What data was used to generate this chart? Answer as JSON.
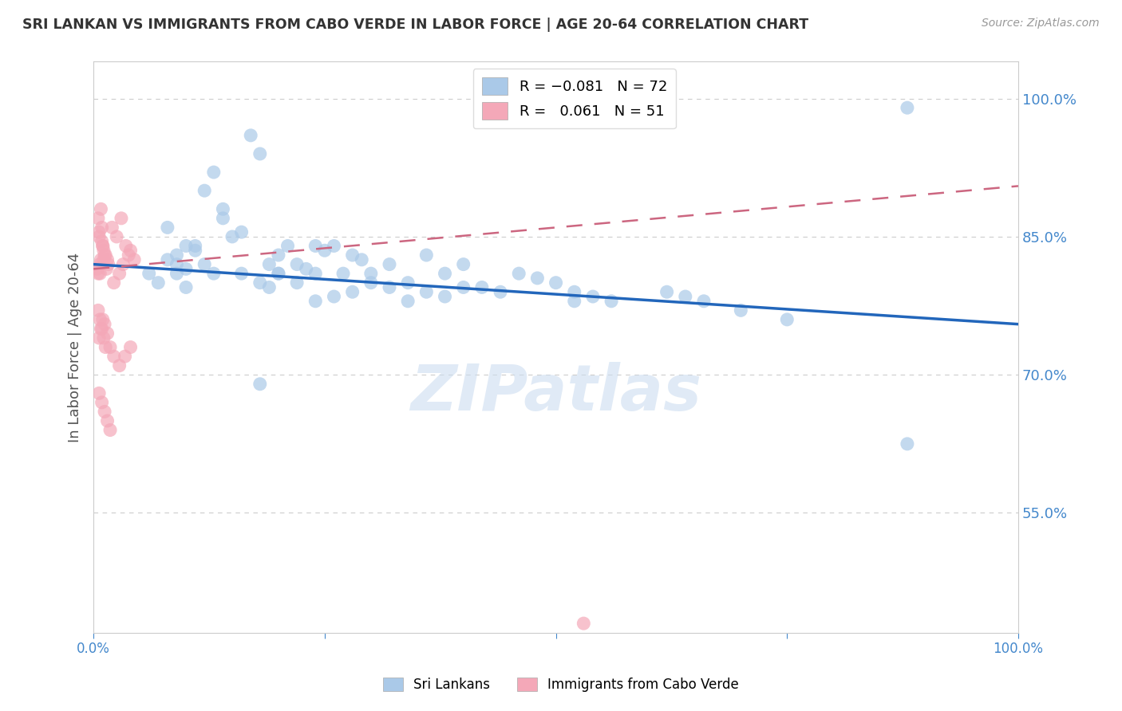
{
  "title": "SRI LANKAN VS IMMIGRANTS FROM CABO VERDE IN LABOR FORCE | AGE 20-64 CORRELATION CHART",
  "source": "Source: ZipAtlas.com",
  "ylabel": "In Labor Force | Age 20-64",
  "ytick_labels": [
    "100.0%",
    "85.0%",
    "70.0%",
    "55.0%"
  ],
  "ytick_values": [
    1.0,
    0.85,
    0.7,
    0.55
  ],
  "xlim": [
    0.0,
    1.0
  ],
  "ylim": [
    0.42,
    1.04
  ],
  "sri_lankans": {
    "color": "#aac9e8",
    "edge_color": "#7aaed4",
    "R": -0.081,
    "N": 72,
    "trend_x0": 0.0,
    "trend_y0": 0.82,
    "trend_x1": 1.0,
    "trend_y1": 0.755
  },
  "cabo_verde": {
    "color": "#f4a8b8",
    "edge_color": "#e07090",
    "R": 0.061,
    "N": 51,
    "trend_x0": 0.0,
    "trend_y0": 0.815,
    "trend_x1": 1.0,
    "trend_y1": 0.905
  },
  "watermark": "ZIPatlas",
  "watermark_color": "#ccddf0",
  "background_color": "#ffffff",
  "grid_color": "#cccccc",
  "title_color": "#333333",
  "axis_label_color": "#555555",
  "tick_label_color": "#4488cc",
  "right_tick_color": "#4488cc",
  "trend_blue_color": "#2266bb",
  "trend_pink_color": "#cc6680",
  "sri_x_data": [
    0.08,
    0.14,
    0.14,
    0.09,
    0.1,
    0.11,
    0.07,
    0.06,
    0.08,
    0.09,
    0.12,
    0.13,
    0.1,
    0.11,
    0.09,
    0.15,
    0.16,
    0.13,
    0.12,
    0.1,
    0.17,
    0.18,
    0.19,
    0.2,
    0.21,
    0.22,
    0.23,
    0.2,
    0.18,
    0.16,
    0.24,
    0.25,
    0.26,
    0.27,
    0.28,
    0.29,
    0.24,
    0.22,
    0.2,
    0.19,
    0.3,
    0.32,
    0.34,
    0.36,
    0.38,
    0.3,
    0.32,
    0.28,
    0.26,
    0.24,
    0.4,
    0.42,
    0.44,
    0.46,
    0.48,
    0.4,
    0.38,
    0.36,
    0.34,
    0.5,
    0.52,
    0.54,
    0.56,
    0.62,
    0.64,
    0.66,
    0.7,
    0.75,
    0.88,
    0.88,
    0.52,
    0.18
  ],
  "sri_y_data": [
    0.86,
    0.88,
    0.87,
    0.82,
    0.815,
    0.84,
    0.8,
    0.81,
    0.825,
    0.83,
    0.9,
    0.92,
    0.84,
    0.835,
    0.81,
    0.85,
    0.855,
    0.81,
    0.82,
    0.795,
    0.96,
    0.94,
    0.82,
    0.83,
    0.84,
    0.82,
    0.815,
    0.81,
    0.8,
    0.81,
    0.84,
    0.835,
    0.84,
    0.81,
    0.83,
    0.825,
    0.81,
    0.8,
    0.81,
    0.795,
    0.81,
    0.82,
    0.8,
    0.83,
    0.81,
    0.8,
    0.795,
    0.79,
    0.785,
    0.78,
    0.82,
    0.795,
    0.79,
    0.81,
    0.805,
    0.795,
    0.785,
    0.79,
    0.78,
    0.8,
    0.79,
    0.785,
    0.78,
    0.79,
    0.785,
    0.78,
    0.77,
    0.76,
    0.99,
    0.625,
    0.78,
    0.69
  ],
  "cabo_x_data": [
    0.005,
    0.008,
    0.01,
    0.012,
    0.015,
    0.006,
    0.009,
    0.011,
    0.014,
    0.007,
    0.005,
    0.008,
    0.01,
    0.013,
    0.016,
    0.006,
    0.009,
    0.011,
    0.004,
    0.007,
    0.02,
    0.025,
    0.03,
    0.035,
    0.04,
    0.022,
    0.028,
    0.032,
    0.038,
    0.044,
    0.005,
    0.007,
    0.009,
    0.011,
    0.013,
    0.006,
    0.008,
    0.01,
    0.012,
    0.015,
    0.018,
    0.022,
    0.028,
    0.034,
    0.04,
    0.006,
    0.009,
    0.012,
    0.015,
    0.018,
    0.53
  ],
  "cabo_y_data": [
    0.87,
    0.88,
    0.84,
    0.83,
    0.825,
    0.855,
    0.86,
    0.835,
    0.815,
    0.82,
    0.81,
    0.825,
    0.84,
    0.83,
    0.82,
    0.85,
    0.845,
    0.825,
    0.815,
    0.81,
    0.86,
    0.85,
    0.87,
    0.84,
    0.835,
    0.8,
    0.81,
    0.82,
    0.83,
    0.825,
    0.77,
    0.76,
    0.75,
    0.74,
    0.73,
    0.74,
    0.75,
    0.76,
    0.755,
    0.745,
    0.73,
    0.72,
    0.71,
    0.72,
    0.73,
    0.68,
    0.67,
    0.66,
    0.65,
    0.64,
    0.43
  ]
}
